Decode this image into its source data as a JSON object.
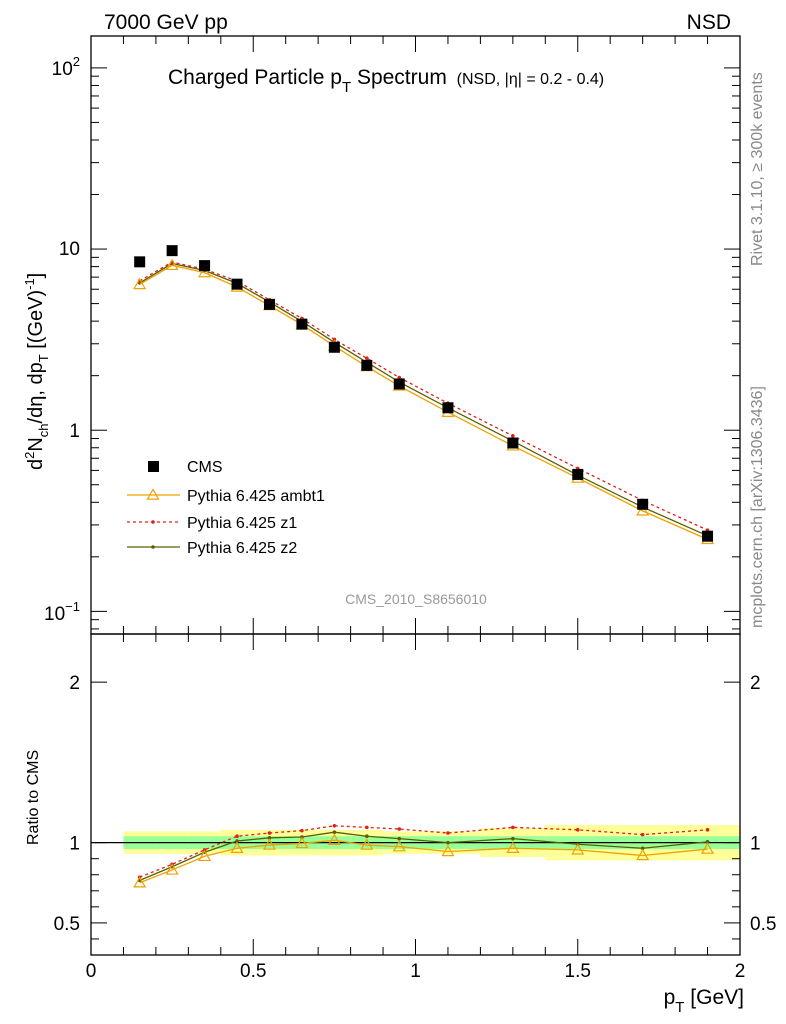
{
  "header": {
    "left": "7000 GeV pp",
    "right": "NSD"
  },
  "side": {
    "rivet": "Rivet 3.1.10, ≥ 300k events",
    "mcplots": "mcplots.cern.ch [arXiv:1306.3436]"
  },
  "chart_data": {
    "type": "line",
    "title_main": "Charged Particle p",
    "title_sub": "T",
    "title_main2": " Spectrum",
    "title_extra": "(NSD, |η| = 0.2 - 0.4)",
    "watermark": "CMS_2010_S8656010",
    "xlabel": "p",
    "xlabel_sub": "T",
    "xlabel_unit": " [GeV]",
    "ylabel": "d²N_ch/dη, dp_T [(GeV)⁻¹]",
    "ratio_ylabel": "Ratio to CMS",
    "xlim": [
      0,
      2
    ],
    "ylim_log": [
      0.075,
      150
    ],
    "ratio_ylim": [
      0.3,
      2.3
    ],
    "x_ticks": [
      "0",
      "0.5",
      "1",
      "1.5",
      "2"
    ],
    "y_ticks": [
      "10",
      "1"
    ],
    "y_tick_exp": {
      "base": "10",
      "hi": "2",
      "lo": "−1"
    },
    "ratio_ticks": [
      "2",
      "1",
      "0.5"
    ],
    "x": [
      0.15,
      0.25,
      0.35,
      0.45,
      0.55,
      0.65,
      0.75,
      0.85,
      0.95,
      1.1,
      1.3,
      1.5,
      1.7,
      1.9
    ],
    "bin_edges": [
      0.1,
      0.2,
      0.3,
      0.4,
      0.5,
      0.6,
      0.7,
      0.8,
      0.9,
      1.0,
      1.2,
      1.4,
      1.6,
      1.8,
      2.0
    ],
    "data": {
      "name": "CMS",
      "values": [
        8.5,
        9.8,
        8.1,
        6.4,
        4.95,
        3.85,
        2.87,
        2.28,
        1.8,
        1.33,
        0.85,
        0.57,
        0.39,
        0.26
      ]
    },
    "band_green": [
      0.04,
      0.04,
      0.04,
      0.04,
      0.04,
      0.04,
      0.04,
      0.04,
      0.04,
      0.04,
      0.04,
      0.04,
      0.04,
      0.04
    ],
    "band_yellow": [
      0.07,
      0.07,
      0.07,
      0.08,
      0.08,
      0.08,
      0.08,
      0.08,
      0.07,
      0.07,
      0.09,
      0.11,
      0.11,
      0.11
    ],
    "series": [
      {
        "name": "Pythia 6.425 ambt1",
        "color": "#f0a000",
        "marker": "triangle",
        "dash": "",
        "ratio": [
          0.75,
          0.83,
          0.915,
          0.965,
          0.985,
          0.995,
          1.015,
          0.985,
          0.975,
          0.945,
          0.965,
          0.955,
          0.92,
          0.96
        ]
      },
      {
        "name": "Pythia 6.425 z1",
        "color": "#e0201a",
        "marker": "dot",
        "dash": "3,3",
        "ratio": [
          0.785,
          0.865,
          0.955,
          1.04,
          1.06,
          1.075,
          1.105,
          1.095,
          1.085,
          1.06,
          1.095,
          1.08,
          1.05,
          1.08
        ]
      },
      {
        "name": "Pythia 6.425 z2",
        "color": "#5a6000",
        "marker": "dot",
        "dash": "",
        "ratio": [
          0.765,
          0.85,
          0.94,
          1.01,
          1.03,
          1.035,
          1.065,
          1.04,
          1.025,
          1.0,
          1.025,
          0.99,
          0.965,
          1.005
        ]
      }
    ]
  }
}
